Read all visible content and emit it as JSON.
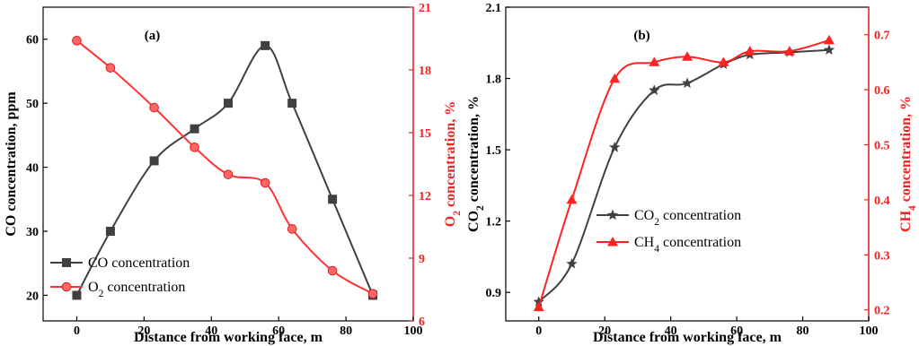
{
  "chart_data": [
    {
      "type": "line",
      "panel_label": "(a)",
      "xlabel": "Distance from working face, m",
      "xlim": [
        -10,
        100
      ],
      "xticks": [
        0,
        20,
        40,
        60,
        80,
        100
      ],
      "ylabel_left": "CO concentration, ppm",
      "ylim_left": [
        16,
        65
      ],
      "yticks_left": [
        20,
        30,
        40,
        50,
        60
      ],
      "ylabel_right": "O2 concentration, %",
      "ylim_right": [
        6,
        21
      ],
      "yticks_right": [
        6,
        9,
        12,
        15,
        18,
        21
      ],
      "legend_position": "bottom-left",
      "series": [
        {
          "name": "CO concentration",
          "axis": "left",
          "color": "#404040",
          "marker": "square",
          "x": [
            0,
            10,
            23,
            35,
            45,
            56,
            64,
            76,
            88
          ],
          "y": [
            20,
            30,
            41,
            46,
            50,
            59,
            50,
            35,
            20
          ]
        },
        {
          "name": "O2 concentration",
          "axis": "right",
          "color": "#ff3333",
          "marker": "circle",
          "x": [
            0,
            10,
            23,
            35,
            45,
            56,
            64,
            76,
            88
          ],
          "y": [
            19.4,
            18.1,
            16.2,
            14.3,
            13.0,
            12.6,
            10.4,
            8.4,
            7.3
          ]
        }
      ]
    },
    {
      "type": "line",
      "panel_label": "(b)",
      "xlabel": "Distance from working face, m",
      "xlim": [
        -10,
        100
      ],
      "xticks": [
        0,
        20,
        40,
        60,
        80,
        100
      ],
      "ylabel_left": "CO2 concentration, %",
      "ylim_left": [
        0.78,
        2.1
      ],
      "yticks_left": [
        0.9,
        1.2,
        1.5,
        1.8,
        2.1
      ],
      "ylabel_right": "CH4 concentration, %",
      "ylim_right": [
        0.18,
        0.75
      ],
      "yticks_right": [
        0.2,
        0.3,
        0.4,
        0.5,
        0.6,
        0.7
      ],
      "legend_position": "center-right",
      "series": [
        {
          "name": "CO2 concentration",
          "axis": "left",
          "color": "#404040",
          "marker": "star",
          "x": [
            0,
            10,
            23,
            35,
            45,
            56,
            64,
            76,
            88
          ],
          "y": [
            0.86,
            1.02,
            1.51,
            1.75,
            1.78,
            1.86,
            1.9,
            1.91,
            1.92
          ]
        },
        {
          "name": "CH4 concentration",
          "axis": "right",
          "color": "#ff2222",
          "marker": "triangle",
          "x": [
            0,
            10,
            23,
            35,
            45,
            56,
            64,
            76,
            88
          ],
          "y": [
            0.205,
            0.4,
            0.62,
            0.65,
            0.66,
            0.65,
            0.67,
            0.67,
            0.69
          ]
        }
      ]
    }
  ]
}
